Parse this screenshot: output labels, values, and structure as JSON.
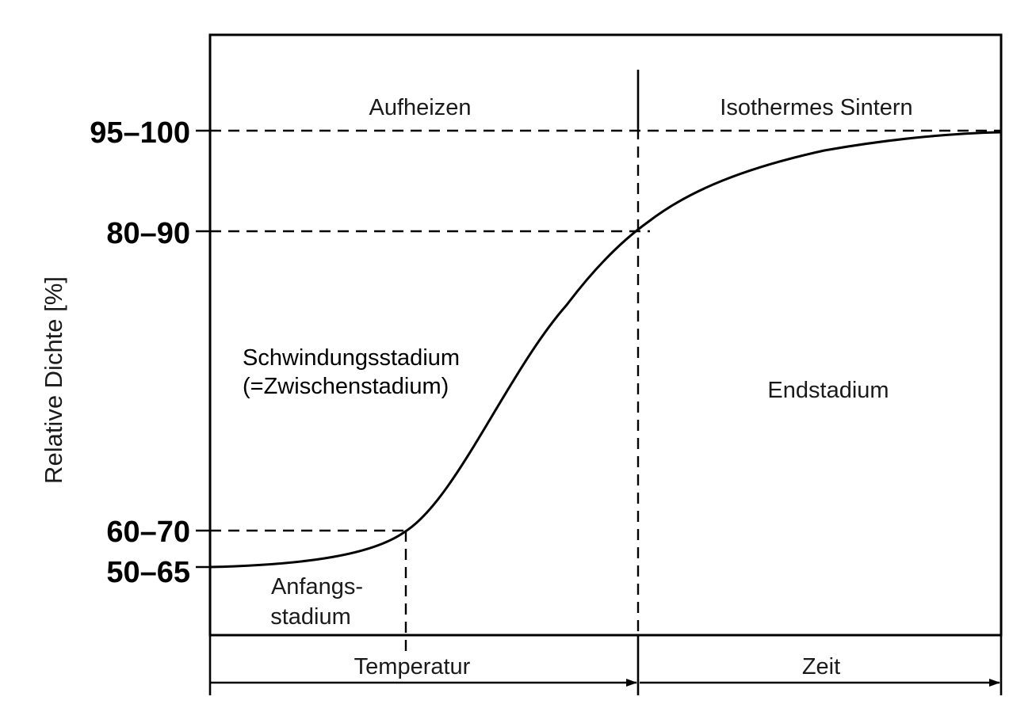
{
  "y_axis": {
    "label": "Relative Dichte [%]",
    "ticks": [
      "95–100",
      "80–90",
      "60–70",
      "50–65"
    ]
  },
  "regions": {
    "top_left": "Aufheizen",
    "top_right": "Isothermes Sintern",
    "middle_left_line1": "Schwindungsstadium",
    "middle_left_line2": "(=Zwischenstadium)",
    "right": "Endstadium",
    "bottom_left_line1": "Anfangs-",
    "bottom_left_line2": "stadium"
  },
  "x_axis": {
    "left_label": "Temperatur",
    "right_label": "Zeit"
  }
}
